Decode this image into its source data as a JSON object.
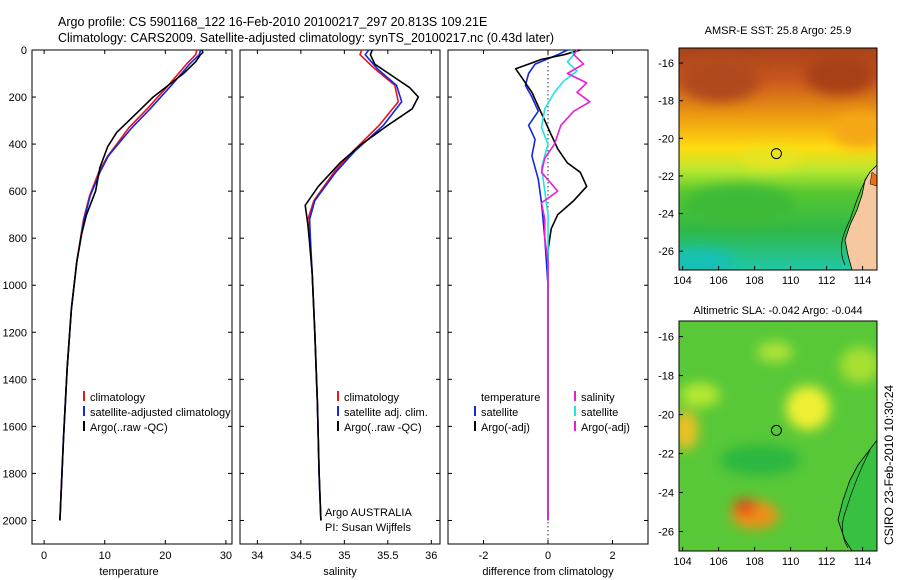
{
  "header": {
    "line1": "Argo profile: CS 5901168_122 16-Feb-2010 20100217_297 20.813S 109.21E",
    "line2": "Climatology: CARS2009. Satellite-adjusted climatology: synTS_20100217.nc (0.43d later)"
  },
  "colors": {
    "climatology": "#e8141e",
    "satellite": "#1428e0",
    "argo": "#000000",
    "sal_satellite": "#22e4e4",
    "sal_argo": "#e620d8"
  },
  "chart_data": [
    {
      "type": "line",
      "xlabel": "temperature",
      "ylabel": "",
      "xlim": [
        -2,
        31
      ],
      "ylim": [
        2100,
        0
      ],
      "y_reversed": true,
      "xticks": [
        0,
        10,
        20,
        30
      ],
      "yticks": [
        0,
        200,
        400,
        600,
        800,
        1000,
        1200,
        1400,
        1600,
        1800,
        2000
      ],
      "legend": [
        "climatology",
        "satellite-adjusted climatology",
        "Argo(..raw -QC)"
      ],
      "legend_position": "lower-right",
      "series": [
        {
          "name": "climatology",
          "color": "climatology",
          "x": [
            25.2,
            25,
            23.5,
            20.5,
            17,
            14,
            12,
            10.5,
            9,
            7.5,
            6.5,
            5.4,
            4.5,
            3.8,
            3.2,
            2.6
          ],
          "y": [
            0,
            20,
            60,
            150,
            250,
            330,
            400,
            450,
            520,
            620,
            720,
            900,
            1100,
            1350,
            1650,
            2000
          ]
        },
        {
          "name": "satellite-adjusted climatology",
          "color": "satellite",
          "x": [
            25.8,
            25.6,
            24,
            21,
            17.5,
            14.5,
            12.2,
            10.6,
            9.2,
            7.6,
            6.6,
            5.4,
            4.5,
            3.8,
            3.2,
            2.6
          ],
          "y": [
            0,
            20,
            60,
            150,
            250,
            330,
            400,
            450,
            520,
            620,
            720,
            900,
            1100,
            1350,
            1650,
            2000
          ]
        },
        {
          "name": "Argo(..raw -QC)",
          "color": "argo",
          "x": [
            26,
            26.2,
            25.8,
            25,
            23,
            20,
            18,
            16,
            14,
            12,
            10.5,
            9.2,
            8.5,
            7,
            6.2,
            5.4,
            4.5,
            3.8,
            3.2,
            2.6
          ],
          "y": [
            0,
            10,
            20,
            50,
            100,
            160,
            200,
            250,
            300,
            350,
            410,
            500,
            600,
            700,
            780,
            900,
            1100,
            1350,
            1650,
            2000
          ]
        }
      ]
    },
    {
      "type": "line",
      "xlabel": "salinity",
      "ylabel": "",
      "xlim": [
        33.8,
        36.1
      ],
      "ylim": [
        2100,
        0
      ],
      "y_reversed": true,
      "xticks": [
        34,
        34.5,
        35,
        35.5,
        36
      ],
      "legend": [
        "climatology",
        "satellite adj. clim.",
        "Argo(..raw -QC)"
      ],
      "legend_position": "lower-right",
      "annotation": [
        "Argo AUSTRALIA",
        "PI: Susan Wijffels"
      ],
      "series": [
        {
          "name": "climatology",
          "color": "climatology",
          "x": [
            35.2,
            35.18,
            35.35,
            35.58,
            35.62,
            35.4,
            35.1,
            34.88,
            34.65,
            34.58,
            34.6,
            34.63,
            34.66,
            34.69,
            34.71,
            34.73
          ],
          "y": [
            0,
            20,
            80,
            150,
            220,
            320,
            430,
            520,
            640,
            720,
            800,
            950,
            1200,
            1500,
            1800,
            2000
          ]
        },
        {
          "name": "satellite adj. clim.",
          "color": "satellite",
          "x": [
            35.28,
            35.24,
            35.38,
            35.6,
            35.66,
            35.45,
            35.12,
            34.9,
            34.66,
            34.6,
            34.61,
            34.63,
            34.66,
            34.69,
            34.71,
            34.73
          ],
          "y": [
            0,
            20,
            80,
            150,
            220,
            320,
            430,
            520,
            640,
            720,
            800,
            950,
            1200,
            1500,
            1800,
            2000
          ]
        },
        {
          "name": "Argo(..raw -QC)",
          "color": "argo",
          "x": [
            35.32,
            35.3,
            35.35,
            35.55,
            35.75,
            35.85,
            35.78,
            35.5,
            35.2,
            34.95,
            34.7,
            34.55,
            34.58,
            34.6,
            34.63,
            34.66,
            34.69,
            34.71,
            34.73
          ],
          "y": [
            0,
            20,
            60,
            110,
            160,
            200,
            250,
            320,
            400,
            480,
            580,
            660,
            740,
            820,
            950,
            1200,
            1500,
            1800,
            2000
          ]
        }
      ]
    },
    {
      "type": "line",
      "xlabel": "difference from climatology",
      "ylabel": "",
      "xlim": [
        -3.1,
        3.1
      ],
      "ylim": [
        2100,
        0
      ],
      "y_reversed": true,
      "xticks": [
        -2,
        0,
        2
      ],
      "legend_groups": [
        {
          "title": "temperature",
          "entries": [
            "satellite",
            "Argo(-adj)"
          ]
        },
        {
          "title": "salinity",
          "entries": [
            "satellite",
            "Argo(-adj)"
          ]
        }
      ],
      "legend_position": "lower-center",
      "series": [
        {
          "name": "temperature satellite",
          "color": "satellite",
          "x": [
            0.6,
            0.3,
            -0.4,
            -0.6,
            -0.7,
            -0.5,
            -0.3,
            -0.6,
            -0.4,
            -0.5,
            -0.3,
            -0.2,
            -0.1,
            0,
            0,
            0
          ],
          "y": [
            0,
            20,
            60,
            100,
            150,
            200,
            260,
            320,
            380,
            450,
            550,
            650,
            800,
            1000,
            1500,
            2000
          ]
        },
        {
          "name": "temperature Argo(-adj)",
          "color": "argo",
          "x": [
            1.0,
            0.5,
            -0.2,
            -0.6,
            -1.0,
            -0.8,
            -0.5,
            -0.3,
            -0.1,
            0.1,
            0.3,
            0.6,
            1.0,
            1.2,
            0.8,
            0.3,
            0.1,
            0,
            0,
            0
          ],
          "y": [
            0,
            20,
            40,
            60,
            80,
            120,
            180,
            240,
            300,
            360,
            420,
            480,
            520,
            580,
            640,
            700,
            760,
            850,
            1300,
            2000
          ]
        },
        {
          "name": "salinity satellite",
          "color": "sal_satellite",
          "x": [
            0.7,
            0.8,
            0.6,
            0.9,
            0.5,
            0.2,
            -0.1,
            -0.2,
            0,
            -0.2,
            -0.1,
            0,
            0,
            0,
            0
          ],
          "y": [
            0,
            20,
            50,
            90,
            130,
            180,
            250,
            330,
            400,
            500,
            600,
            700,
            900,
            1400,
            2000
          ]
        },
        {
          "name": "salinity Argo(-adj)",
          "color": "sal_argo",
          "x": [
            0.9,
            0.8,
            1.1,
            0.6,
            1.2,
            0.9,
            1.3,
            0.8,
            0.4,
            0.2,
            -0.1,
            -0.2,
            0.3,
            -0.2,
            -0.1,
            -0.1,
            0,
            0
          ],
          "y": [
            0,
            20,
            60,
            100,
            140,
            180,
            220,
            260,
            320,
            400,
            460,
            520,
            600,
            650,
            720,
            800,
            900,
            2000
          ]
        }
      ]
    }
  ],
  "maps": [
    {
      "title": "AMSR-E SST: 25.8 Argo: 25.9",
      "xticks": [
        104,
        106,
        108,
        110,
        112,
        114
      ],
      "yticks": [
        -16,
        -18,
        -20,
        -22,
        -24,
        -26
      ],
      "lon_range": [
        103.8,
        114.8
      ],
      "lat_range": [
        -27,
        -15.2
      ],
      "profile_position": {
        "lon": 109.21,
        "lat": -20.813
      },
      "kind": "sst"
    },
    {
      "title": "Altimetric SLA: -0.042 Argo: -0.044",
      "xticks": [
        104,
        106,
        108,
        110,
        112,
        114
      ],
      "yticks": [
        -16,
        -18,
        -20,
        -22,
        -24,
        -26
      ],
      "lon_range": [
        103.8,
        114.8
      ],
      "lat_range": [
        -27,
        -15.2
      ],
      "profile_position": {
        "lon": 109.21,
        "lat": -20.813
      },
      "kind": "sla"
    }
  ],
  "footer_stamp": "CSIRO 23-Feb-2010 10:30:24"
}
